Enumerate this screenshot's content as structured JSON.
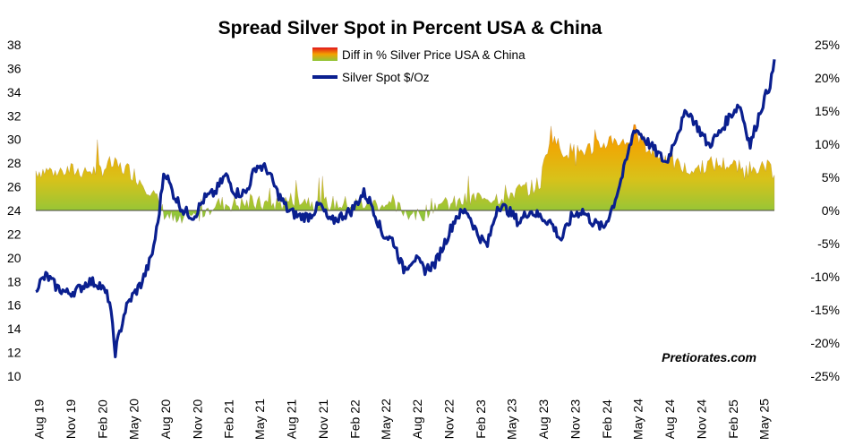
{
  "chart_data": {
    "type": "area",
    "title": "Spread Silver Spot in Percent USA & China",
    "watermark": "Pretiorates.com",
    "y_left": {
      "ticks": [
        "10",
        "12",
        "14",
        "16",
        "18",
        "20",
        "22",
        "24",
        "26",
        "28",
        "30",
        "32",
        "34",
        "36",
        "38"
      ],
      "range": [
        10,
        38
      ]
    },
    "y_right": {
      "ticks": [
        "-25%",
        "-20%",
        "-15%",
        "-10%",
        "-5%",
        "0%",
        "5%",
        "10%",
        "15%",
        "20%",
        "25%"
      ],
      "range": [
        -25,
        25
      ]
    },
    "x_labels": [
      "Aug 19",
      "Nov 19",
      "Feb 20",
      "May 20",
      "Aug 20",
      "Nov 20",
      "Feb 21",
      "May 21",
      "Aug 21",
      "Nov 21",
      "Feb 22",
      "May 22",
      "Aug 22",
      "Nov 22",
      "Feb 23",
      "May 23",
      "Aug 23",
      "Nov 23",
      "Feb 24",
      "May 24",
      "Aug 24",
      "Nov 24",
      "Feb 25",
      "May 25"
    ],
    "series": [
      {
        "name": "Diff in % Silver Price USA & China",
        "axis": "right",
        "type": "area",
        "x": [
          "2019-08-01",
          "2019-10-01",
          "2019-12-01",
          "2020-02-01",
          "2020-03-01",
          "2020-05-01",
          "2020-07-01",
          "2020-08-01",
          "2020-09-15",
          "2020-11-01",
          "2021-01-01",
          "2021-03-01",
          "2021-05-01",
          "2021-07-01",
          "2021-09-01",
          "2021-11-01",
          "2022-01-01",
          "2022-03-01",
          "2022-05-01",
          "2022-07-01",
          "2022-08-15",
          "2022-10-01",
          "2022-12-01",
          "2023-02-01",
          "2023-04-01",
          "2023-06-01",
          "2023-08-01",
          "2023-09-01",
          "2023-10-01",
          "2023-12-01",
          "2024-02-01",
          "2024-03-01",
          "2024-04-01",
          "2024-05-01",
          "2024-06-15",
          "2024-08-01",
          "2024-10-01",
          "2024-12-01",
          "2025-02-01",
          "2025-03-15",
          "2025-05-01",
          "2025-06-01"
        ],
        "values": [
          6,
          6,
          6,
          6,
          7,
          6,
          3,
          0,
          -2,
          -1,
          1,
          1,
          1,
          1,
          2,
          1,
          1,
          1,
          1,
          0,
          -1,
          1,
          1,
          2,
          2,
          3,
          4,
          12,
          9,
          9,
          10,
          11,
          10,
          12,
          9,
          8,
          6,
          7,
          7,
          6,
          7,
          6
        ]
      },
      {
        "name": "Silver Spot  $/Oz",
        "axis": "left",
        "type": "line",
        "color": "#0a1f8f",
        "x": [
          "2019-08-01",
          "2019-09-01",
          "2019-10-01",
          "2019-11-01",
          "2019-12-01",
          "2020-01-01",
          "2020-02-01",
          "2020-03-01",
          "2020-03-18",
          "2020-04-15",
          "2020-05-01",
          "2020-06-01",
          "2020-07-01",
          "2020-07-20",
          "2020-08-07",
          "2020-09-01",
          "2020-10-01",
          "2020-11-01",
          "2020-12-01",
          "2021-01-01",
          "2021-02-01",
          "2021-03-01",
          "2021-04-01",
          "2021-05-01",
          "2021-06-01",
          "2021-07-01",
          "2021-08-01",
          "2021-09-01",
          "2021-10-01",
          "2021-11-01",
          "2021-12-01",
          "2022-01-01",
          "2022-02-01",
          "2022-03-08",
          "2022-04-01",
          "2022-05-01",
          "2022-06-01",
          "2022-07-01",
          "2022-08-01",
          "2022-09-01",
          "2022-10-01",
          "2022-11-01",
          "2022-12-01",
          "2023-01-01",
          "2023-02-01",
          "2023-03-01",
          "2023-04-01",
          "2023-05-01",
          "2023-06-01",
          "2023-07-01",
          "2023-08-01",
          "2023-09-01",
          "2023-10-01",
          "2023-11-01",
          "2023-12-01",
          "2024-01-01",
          "2024-02-01",
          "2024-03-01",
          "2024-04-01",
          "2024-05-01",
          "2024-06-01",
          "2024-07-01",
          "2024-08-01",
          "2024-09-01",
          "2024-10-01",
          "2024-11-01",
          "2024-12-01",
          "2025-01-01",
          "2025-02-01",
          "2025-03-01",
          "2025-04-01",
          "2025-05-01",
          "2025-06-01",
          "2025-06-10"
        ],
        "values": [
          17.5,
          18.5,
          17.5,
          17.0,
          17.3,
          18.0,
          17.8,
          16.5,
          12.0,
          15.5,
          16.5,
          17.8,
          20.0,
          23.0,
          27.5,
          25.5,
          24.0,
          23.5,
          25.0,
          25.5,
          27.0,
          25.5,
          25.5,
          27.8,
          27.5,
          25.5,
          24.0,
          23.5,
          23.5,
          24.5,
          23.0,
          23.5,
          24.0,
          25.5,
          24.5,
          22.0,
          21.5,
          19.0,
          20.0,
          19.0,
          19.5,
          21.5,
          23.5,
          24.0,
          22.0,
          21.0,
          24.5,
          24.0,
          23.0,
          24.0,
          23.5,
          23.0,
          21.5,
          23.5,
          24.0,
          23.0,
          22.5,
          24.5,
          27.5,
          31.0,
          30.0,
          29.0,
          28.0,
          30.5,
          32.5,
          31.0,
          29.5,
          30.5,
          32.0,
          33.0,
          29.5,
          32.5,
          35.0,
          36.5
        ]
      }
    ]
  }
}
